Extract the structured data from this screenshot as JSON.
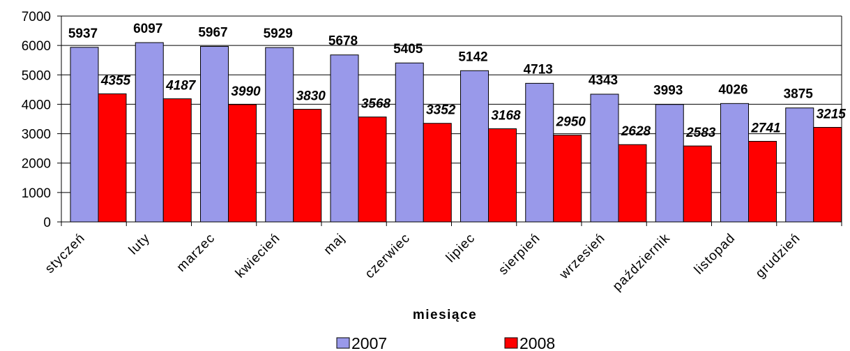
{
  "chart_data": {
    "type": "bar",
    "xlabel": "miesiące",
    "ylabel": "",
    "ylim": [
      0,
      7000
    ],
    "yticks": [
      "0",
      "1000",
      "2000",
      "3000",
      "4000",
      "5000",
      "6000",
      "7000"
    ],
    "grid": true,
    "legend_position": "bottom",
    "categories": [
      "styczeń",
      "luty",
      "marzec",
      "kwiecień",
      "maj",
      "czerwiec",
      "lipiec",
      "sierpień",
      "wrzesień",
      "październik",
      "listopad",
      "grudzień"
    ],
    "series": [
      {
        "name": "2007",
        "color": "#9999ea",
        "values": [
          5937,
          6097,
          5967,
          5929,
          5678,
          5405,
          5142,
          4713,
          4343,
          3993,
          4026,
          3875
        ]
      },
      {
        "name": "2008",
        "color": "#ff0000",
        "values": [
          4355,
          4187,
          3990,
          3830,
          3568,
          3352,
          3168,
          2950,
          2628,
          2583,
          2741,
          3215
        ]
      }
    ]
  }
}
